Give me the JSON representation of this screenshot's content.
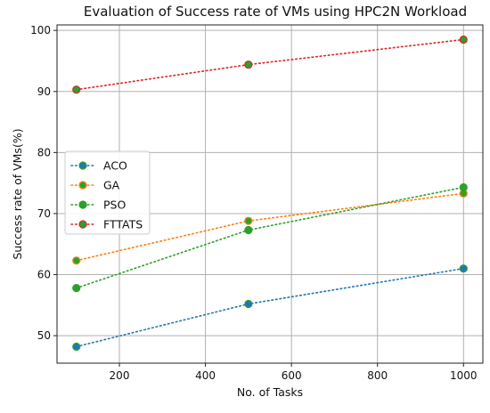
{
  "chart_data": {
    "type": "line",
    "title": "Evaluation of Success rate of VMs using HPC2N Workload",
    "xlabel": "No. of Tasks",
    "ylabel": "Success rate of VMs(%)",
    "xlim": [
      55,
      1045
    ],
    "ylim": [
      45.5,
      100.9
    ],
    "xticks": [
      200,
      400,
      600,
      800,
      1000
    ],
    "yticks": [
      50,
      60,
      70,
      80,
      90,
      100
    ],
    "grid": true,
    "legend_position": "center-left",
    "x": [
      100,
      500,
      1000
    ],
    "series": [
      {
        "name": "ACO",
        "values": [
          48.2,
          55.2,
          61.0
        ],
        "line_color": "#1f77b4",
        "marker_color": "#1f77b4",
        "marker_edge": "#2ca02c"
      },
      {
        "name": "GA",
        "values": [
          62.3,
          68.8,
          73.3
        ],
        "line_color": "#ff7f0e",
        "marker_color": "#2ca02c",
        "marker_edge": "#ff7f0e"
      },
      {
        "name": "PSO",
        "values": [
          57.8,
          67.3,
          74.3
        ],
        "line_color": "#2ca02c",
        "marker_color": "#2ca02c",
        "marker_edge": "#2ca02c"
      },
      {
        "name": "FTTATS",
        "values": [
          90.3,
          94.4,
          98.5
        ],
        "line_color": "#d62728",
        "marker_color": "#2ca02c",
        "marker_edge": "#d62728"
      }
    ]
  }
}
